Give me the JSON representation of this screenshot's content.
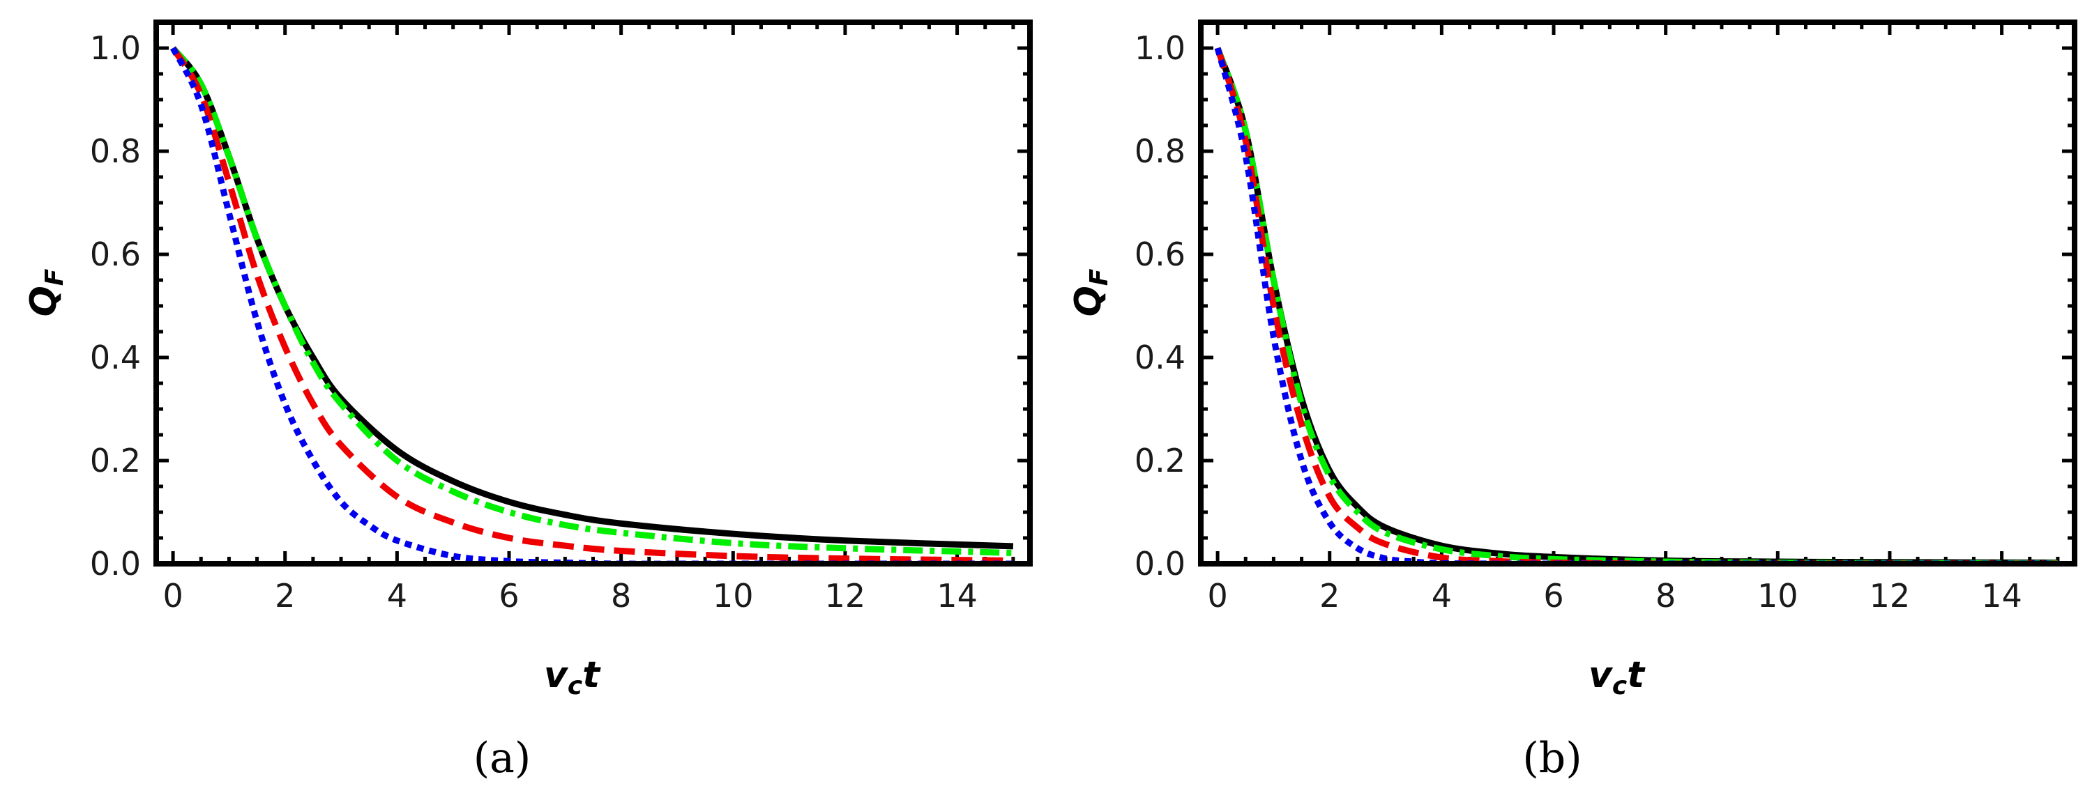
{
  "chart_data": [
    {
      "type": "line",
      "panel": "(a)",
      "xlabel": "v_c t",
      "ylabel": "Q_F",
      "xlim": [
        -0.3,
        15.3
      ],
      "ylim": [
        0,
        1.05
      ],
      "xticks": [
        "0",
        "2",
        "4",
        "6",
        "8",
        "10",
        "12",
        "14"
      ],
      "yticks": [
        "0.0",
        "0.2",
        "0.4",
        "0.6",
        "0.8",
        "1.0"
      ],
      "series": [
        {
          "style": "solid",
          "color": "#000000",
          "x": [
            0,
            0.5,
            1,
            1.5,
            2,
            2.5,
            3,
            4,
            5,
            6,
            7,
            8,
            10,
            12,
            15
          ],
          "y": [
            1.0,
            0.93,
            0.79,
            0.63,
            0.5,
            0.4,
            0.32,
            0.22,
            0.16,
            0.12,
            0.095,
            0.078,
            0.058,
            0.045,
            0.034
          ]
        },
        {
          "style": "dashdot",
          "color": "#00ee00",
          "x": [
            0,
            0.5,
            1,
            1.5,
            2,
            2.5,
            3,
            4,
            5,
            6,
            7,
            8,
            10,
            12,
            15
          ],
          "y": [
            1.0,
            0.93,
            0.79,
            0.63,
            0.5,
            0.39,
            0.31,
            0.2,
            0.14,
            0.1,
            0.075,
            0.06,
            0.04,
            0.03,
            0.021
          ]
        },
        {
          "style": "dashed",
          "color": "#ee0000",
          "x": [
            0,
            0.5,
            1,
            1.5,
            2,
            2.5,
            3,
            4,
            5,
            6,
            7,
            8,
            10,
            12,
            15
          ],
          "y": [
            1.0,
            0.91,
            0.74,
            0.56,
            0.42,
            0.31,
            0.23,
            0.13,
            0.08,
            0.05,
            0.035,
            0.025,
            0.015,
            0.01,
            0.006
          ]
        },
        {
          "style": "dotted",
          "color": "#0000ee",
          "x": [
            0,
            0.5,
            1,
            1.5,
            2,
            2.5,
            3,
            3.5,
            4,
            5,
            6,
            7,
            8,
            10,
            15
          ],
          "y": [
            1.0,
            0.89,
            0.68,
            0.47,
            0.31,
            0.2,
            0.12,
            0.075,
            0.045,
            0.015,
            0.005,
            0.002,
            0.0,
            0.0,
            0.0
          ]
        }
      ]
    },
    {
      "type": "line",
      "panel": "(b)",
      "xlabel": "v_c t",
      "ylabel": "Q_F",
      "xlim": [
        -0.3,
        15.3
      ],
      "ylim": [
        0,
        1.05
      ],
      "xticks": [
        "0",
        "2",
        "4",
        "6",
        "8",
        "10",
        "12",
        "14"
      ],
      "yticks": [
        "0.0",
        "0.2",
        "0.4",
        "0.6",
        "0.8",
        "1.0"
      ],
      "series": [
        {
          "style": "solid",
          "color": "#000000",
          "x": [
            0,
            0.5,
            1,
            1.5,
            2,
            2.5,
            3,
            4,
            5,
            6,
            8,
            10,
            12,
            15
          ],
          "y": [
            1.0,
            0.84,
            0.55,
            0.32,
            0.18,
            0.11,
            0.07,
            0.035,
            0.02,
            0.013,
            0.006,
            0.004,
            0.003,
            0.002
          ]
        },
        {
          "style": "dashdot",
          "color": "#00ee00",
          "x": [
            0,
            0.5,
            1,
            1.5,
            2,
            2.5,
            3,
            4,
            5,
            6,
            8,
            10,
            12,
            15
          ],
          "y": [
            1.0,
            0.84,
            0.55,
            0.31,
            0.17,
            0.1,
            0.06,
            0.028,
            0.015,
            0.009,
            0.004,
            0.002,
            0.001,
            0.001
          ]
        },
        {
          "style": "dashed",
          "color": "#ee0000",
          "x": [
            0,
            0.5,
            1,
            1.5,
            2,
            2.5,
            3,
            4,
            5,
            6,
            8,
            10,
            12,
            15
          ],
          "y": [
            1.0,
            0.82,
            0.5,
            0.27,
            0.13,
            0.07,
            0.038,
            0.012,
            0.005,
            0.002,
            0.0,
            0.0,
            0.0,
            0.0
          ]
        },
        {
          "style": "dotted",
          "color": "#0000ee",
          "x": [
            0,
            0.5,
            1,
            1.5,
            2,
            2.5,
            3,
            3.5,
            4,
            5,
            6,
            8,
            10,
            15
          ],
          "y": [
            1.0,
            0.79,
            0.44,
            0.2,
            0.08,
            0.03,
            0.01,
            0.004,
            0.001,
            0.0,
            0.0,
            0.0,
            0.0,
            0.0
          ]
        }
      ]
    }
  ]
}
